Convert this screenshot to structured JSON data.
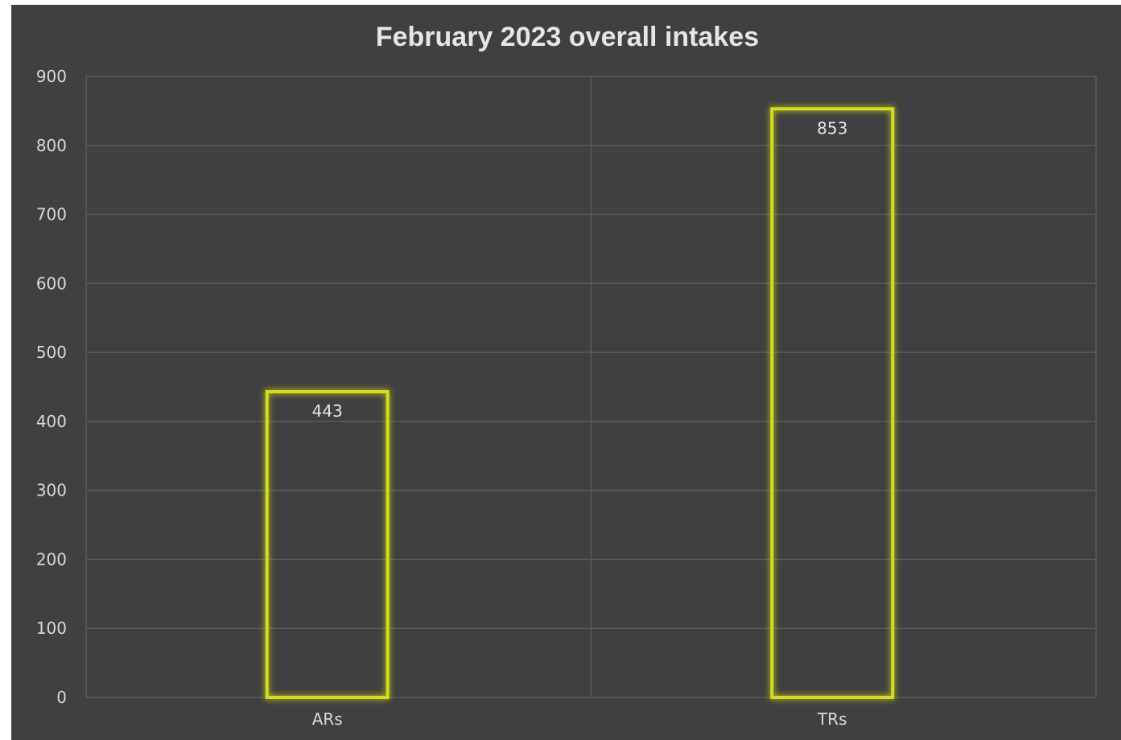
{
  "chart_data": {
    "type": "bar",
    "title": "February 2023 overall intakes",
    "categories": [
      "ARs",
      "TRs"
    ],
    "values": [
      443,
      853
    ],
    "data_labels": [
      "443",
      "853"
    ],
    "xlabel": "",
    "ylabel": "",
    "ylim": [
      0,
      900
    ],
    "y_ticks": [
      "0",
      "100",
      "200",
      "300",
      "400",
      "500",
      "600",
      "700",
      "800",
      "900"
    ],
    "grid": true,
    "legend": "none"
  },
  "colors": {
    "background": "#404040",
    "bar_outline": "#d4dc1e",
    "bar_glow": "#c8cf2a",
    "gridline": "#5a5a5a",
    "text": "#d9d9d9"
  }
}
